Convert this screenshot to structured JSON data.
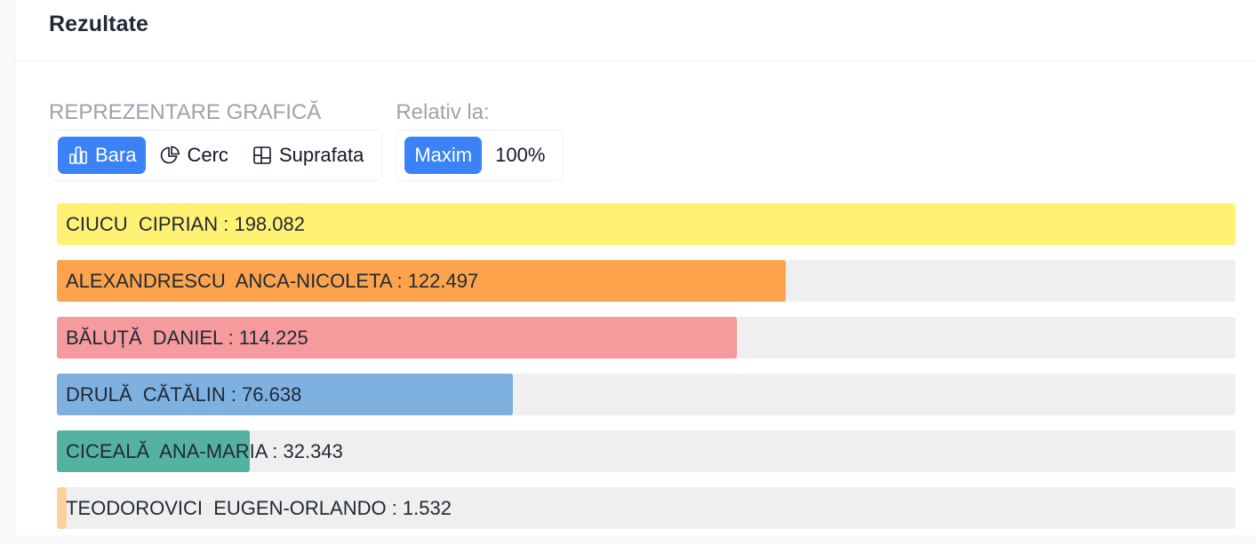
{
  "header": {
    "title": "Rezultate"
  },
  "representation": {
    "label": "REPREZENTARE GRAFICĂ",
    "options": [
      {
        "label": "Bara",
        "icon": "bar-chart-icon",
        "active": true
      },
      {
        "label": "Cerc",
        "icon": "pie-chart-icon",
        "active": false
      },
      {
        "label": "Suprafata",
        "icon": "treemap-icon",
        "active": false
      }
    ]
  },
  "relative": {
    "label": "Relativ la:",
    "options": [
      {
        "label": "Maxim",
        "active": true
      },
      {
        "label": "100%",
        "active": false
      }
    ]
  },
  "colors": {
    "accent": "#3b82f6",
    "track": "#efefef"
  },
  "chart_data": {
    "type": "bar",
    "orientation": "horizontal",
    "relative_to": "max",
    "max_value": 198.082,
    "series": [
      {
        "name": "CIUCU  CIPRIAN",
        "value": 198.082,
        "label": "CIUCU  CIPRIAN : 198.082",
        "color": "#fef173"
      },
      {
        "name": "ALEXANDRESCU  ANCA-NICOLETA",
        "value": 122.497,
        "label": "ALEXANDRESCU  ANCA-NICOLETA : 122.497",
        "color": "#fda34b"
      },
      {
        "name": "BĂLUȚĂ  DANIEL",
        "value": 114.225,
        "label": "BĂLUȚĂ  DANIEL : 114.225",
        "color": "#f59b9d"
      },
      {
        "name": "DRULĂ  CĂTĂLIN",
        "value": 76.638,
        "label": "DRULĂ  CĂTĂLIN : 76.638",
        "color": "#7eb0e0"
      },
      {
        "name": "CICEALĂ  ANA-MARIA",
        "value": 32.343,
        "label": "CICEALĂ  ANA-MARIA : 32.343",
        "color": "#56b2a0"
      },
      {
        "name": "TEODOROVICI  EUGEN-ORLANDO",
        "value": 1.532,
        "label": "TEODOROVICI  EUGEN-ORLANDO : 1.532",
        "color": "#fcd29c"
      }
    ]
  }
}
